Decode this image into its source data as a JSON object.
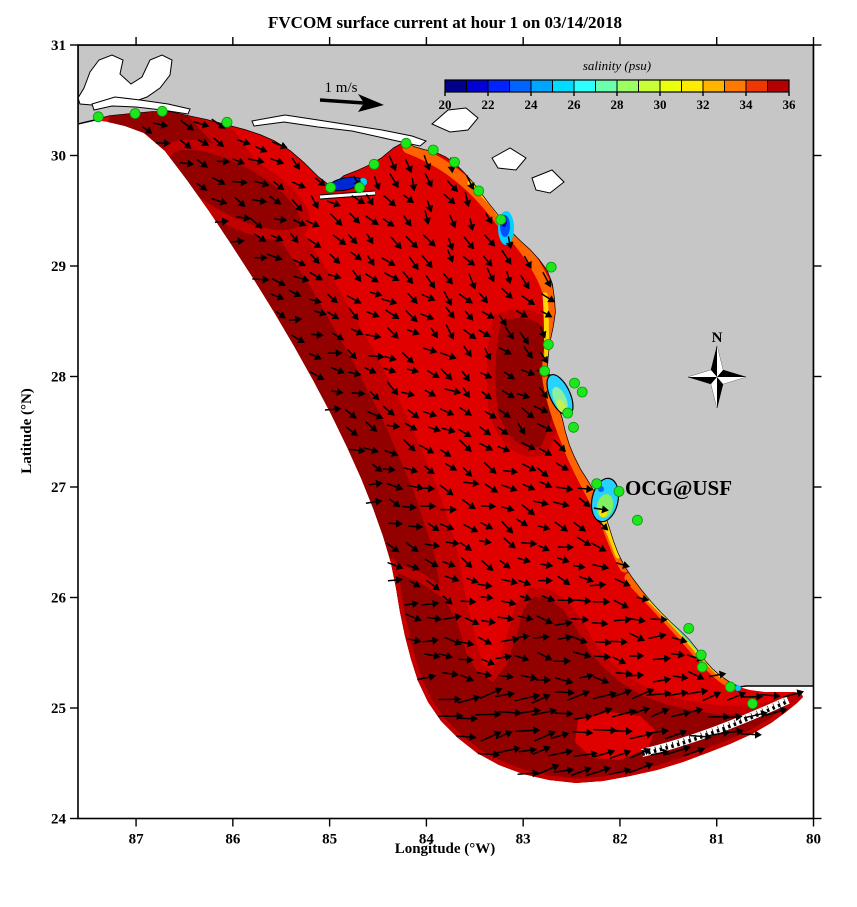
{
  "title": "FVCOM surface current at hour 1 on 03/14/2018",
  "axes": {
    "x": {
      "label": "Longitude (°W)",
      "ticks": [
        87,
        86,
        85,
        84,
        83,
        82,
        81,
        80
      ]
    },
    "y": {
      "label": "Latitude (°N)",
      "ticks": [
        31,
        30,
        29,
        28,
        27,
        26,
        25,
        24
      ]
    }
  },
  "colorbar": {
    "label": "salinity (psu)",
    "min": 20,
    "max": 36,
    "tick_values": [
      20,
      22,
      24,
      26,
      28,
      30,
      32,
      34,
      36
    ],
    "segment_colors": [
      "#00008c",
      "#0000d7",
      "#0023ff",
      "#0064ff",
      "#00a5ff",
      "#00dcff",
      "#2dffff",
      "#69ffaf",
      "#9bff64",
      "#c8ff37",
      "#ebff0f",
      "#ffeb00",
      "#ffb400",
      "#ff7800",
      "#f03700",
      "#b40000"
    ]
  },
  "annotations": {
    "scale_label": "1 m/s",
    "compass_label": "N",
    "watermark": "OCG@USF"
  },
  "map_colors": {
    "land": "#c6c6c6",
    "ocean_outside_model": "#ffffff",
    "shelf_red": "#e10000",
    "shelf_mid_red": "#c30000",
    "shelf_dark_red": "#930000",
    "station_green": "#1ce61c",
    "vector_black": "#000000",
    "watermark_red": "#ff1414"
  },
  "chart_data": {
    "type": "heatmap",
    "title": "FVCOM surface current at hour 1 on 03/14/2018",
    "xlabel": "Longitude (°W)",
    "ylabel": "Latitude (°N)",
    "x_ticks": [
      87,
      86,
      85,
      84,
      83,
      82,
      81,
      80
    ],
    "y_ticks": [
      31,
      30,
      29,
      28,
      27,
      26,
      25,
      24
    ],
    "xlim_deg_w": [
      87.6,
      80
    ],
    "ylim_deg_n": [
      24,
      31
    ],
    "grid": false,
    "color_variable": "salinity (psu)",
    "color_scale": {
      "min": 20,
      "max": 36,
      "ticks": [
        20,
        22,
        24,
        26,
        28,
        30,
        32,
        34,
        36
      ],
      "colormap": "jet-like, dark blue at 20 psu to dark red at 36 psu, 16 discrete 1-psu bands"
    },
    "vector_overlay": {
      "variable": "surface current",
      "reference_arrow": "1 m/s",
      "general_pattern": "east-to-southeastward flow over the West Florida Shelf; strongest, eastward vectors along the Florida Keys at the southern model boundary"
    },
    "field_summary": [
      {
        "region": "open West Florida Shelf",
        "salinity_psu": "34-36"
      },
      {
        "region": "Apalachicola Bay plume (~84.9W, 29.7N)",
        "salinity_psu": "20-26"
      },
      {
        "region": "Big Bend coastal plume (~83.2W, 29.4N)",
        "salinity_psu": "22-30"
      },
      {
        "region": "Tampa Bay (~82.5W, 27.9N)",
        "salinity_psu": "26-30"
      },
      {
        "region": "Charlotte Harbor (~82.2W, 27.0N)",
        "salinity_psu": "24-30"
      },
      {
        "region": "Southwest Florida coastal strip (~81.3W, 25.5N)",
        "salinity_psu": "26-33"
      }
    ],
    "stations_lon_lat_deg": [
      [
        87.39,
        30.35
      ],
      [
        87.01,
        30.38
      ],
      [
        86.73,
        30.4
      ],
      [
        86.06,
        30.3
      ],
      [
        84.99,
        29.71
      ],
      [
        84.69,
        29.71
      ],
      [
        84.54,
        29.92
      ],
      [
        84.21,
        30.11
      ],
      [
        83.93,
        30.05
      ],
      [
        83.71,
        29.94
      ],
      [
        83.46,
        29.68
      ],
      [
        83.23,
        29.42
      ],
      [
        82.71,
        28.99
      ],
      [
        82.74,
        28.29
      ],
      [
        82.78,
        28.05
      ],
      [
        82.47,
        27.94
      ],
      [
        82.39,
        27.86
      ],
      [
        82.54,
        27.67
      ],
      [
        82.48,
        27.54
      ],
      [
        82.24,
        27.03
      ],
      [
        82.01,
        26.96
      ],
      [
        81.82,
        26.7
      ],
      [
        81.29,
        25.72
      ],
      [
        81.16,
        25.48
      ],
      [
        81.15,
        25.37
      ],
      [
        80.86,
        25.19
      ],
      [
        80.63,
        25.04
      ]
    ]
  }
}
